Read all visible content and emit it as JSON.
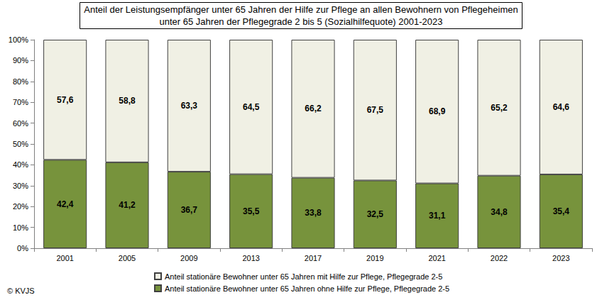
{
  "chart_data": {
    "type": "bar",
    "title": "Anteil der Leistungsempfänger unter 65 Jahren der Hilfe zur Pflege an allen Bewohnern von Pflegeheimen\nunter 65 Jahren der Pflegegrade 2 bis 5 (Sozialhilfequote) 2001-2023",
    "categories": [
      "2001",
      "2005",
      "2009",
      "2013",
      "2017",
      "2019",
      "2021",
      "2022",
      "2023"
    ],
    "series": [
      {
        "name": "Anteil stationäre Bewohner unter 65 Jahren ohne Hilfe zur Pflege, Pflegegrade 2-5",
        "color": "#77933c",
        "values": [
          42.4,
          41.2,
          36.7,
          35.5,
          33.8,
          32.5,
          31.1,
          34.8,
          35.4
        ],
        "value_labels": [
          "42,4",
          "41,2",
          "36,7",
          "35,5",
          "33,8",
          "32,5",
          "31,1",
          "34,8",
          "35,4"
        ]
      },
      {
        "name": "Anteil stationäre Bewohner unter 65 Jahren mit Hilfe zur Pflege, Pflegegrade 2-5",
        "color": "#f0f0e4",
        "values": [
          57.6,
          58.8,
          63.3,
          64.5,
          66.2,
          67.5,
          68.9,
          65.2,
          64.6
        ],
        "value_labels": [
          "57,6",
          "58,8",
          "63,3",
          "64,5",
          "66,2",
          "67,5",
          "68,9",
          "65,2",
          "64,6"
        ]
      }
    ],
    "stacked": true,
    "data_labels": true,
    "grid": false,
    "legend": "bottom-left",
    "ylim": [
      0,
      100
    ],
    "yticks": [
      {
        "value": 0,
        "label": "0%"
      },
      {
        "value": 10,
        "label": "10%"
      },
      {
        "value": 20,
        "label": "20%"
      },
      {
        "value": 30,
        "label": "30%"
      },
      {
        "value": 40,
        "label": "40%"
      },
      {
        "value": 50,
        "label": "50%"
      },
      {
        "value": 60,
        "label": "60%"
      },
      {
        "value": 70,
        "label": "70%"
      },
      {
        "value": 80,
        "label": "80%"
      },
      {
        "value": 90,
        "label": "90%"
      },
      {
        "value": 100,
        "label": "100%"
      }
    ],
    "annotations": [
      "© KVJS"
    ]
  }
}
